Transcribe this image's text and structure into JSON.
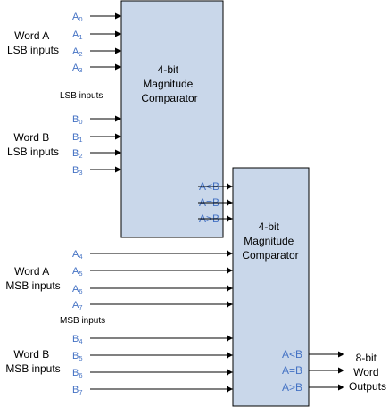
{
  "diagram": {
    "word_a_lsb": [
      "Word A",
      "LSB inputs"
    ],
    "word_b_lsb": [
      "Word B",
      "LSB inputs"
    ],
    "word_a_msb": [
      "Word A",
      "MSB inputs"
    ],
    "word_b_msb": [
      "Word B",
      "MSB inputs"
    ],
    "lsb_inputs_note": "LSB inputs",
    "msb_inputs_note": "MSB inputs",
    "comparator1": [
      "4-bit",
      "Magnitude",
      "Comparator"
    ],
    "comparator2": [
      "4-bit",
      "Magnitude",
      "Comparator"
    ],
    "pins_a_lsb": [
      {
        "letter": "A",
        "sub": "0"
      },
      {
        "letter": "A",
        "sub": "1"
      },
      {
        "letter": "A",
        "sub": "2"
      },
      {
        "letter": "A",
        "sub": "3"
      }
    ],
    "pins_b_lsb": [
      {
        "letter": "B",
        "sub": "0"
      },
      {
        "letter": "B",
        "sub": "1"
      },
      {
        "letter": "B",
        "sub": "2"
      },
      {
        "letter": "B",
        "sub": "3"
      }
    ],
    "pins_a_msb": [
      {
        "letter": "A",
        "sub": "4"
      },
      {
        "letter": "A",
        "sub": "5"
      },
      {
        "letter": "A",
        "sub": "6"
      },
      {
        "letter": "A",
        "sub": "7"
      }
    ],
    "pins_b_msb": [
      {
        "letter": "B",
        "sub": "4"
      },
      {
        "letter": "B",
        "sub": "5"
      },
      {
        "letter": "B",
        "sub": "6"
      },
      {
        "letter": "B",
        "sub": "7"
      }
    ],
    "outputs1": [
      "A<B",
      "A=B",
      "A>B"
    ],
    "outputs2": [
      "A<B",
      "A=B",
      "A>B"
    ],
    "final_output": [
      "8-bit",
      "Word",
      "Outputs"
    ]
  }
}
